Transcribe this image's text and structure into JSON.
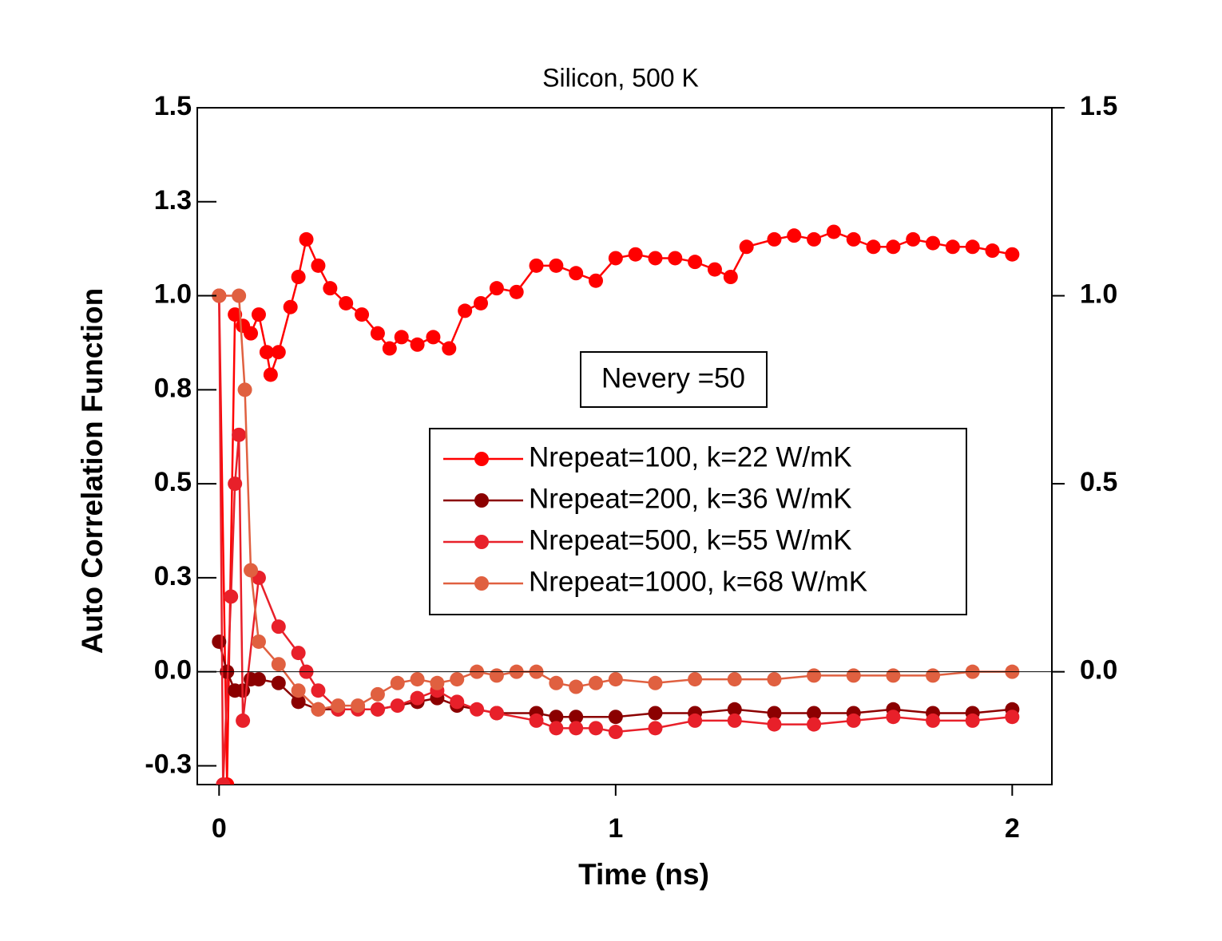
{
  "chart_data": {
    "type": "line",
    "title": "Silicon, 500 K",
    "xlabel": "Time (ns)",
    "ylabel": "Auto Correlation Function",
    "annotation": "Nevery =50",
    "xlim": [
      -0.055,
      2.1
    ],
    "xticks": [
      0,
      1,
      2
    ],
    "ylim": [
      -0.3,
      1.5
    ],
    "yticks": [
      1.5,
      {
        "value": 1.25,
        "label": "1.3"
      },
      {
        "value": 1,
        "label": "1.0"
      },
      {
        "value": 0.75,
        "label": "0.8"
      },
      0.5,
      {
        "value": 0.25,
        "label": "0.3"
      },
      {
        "value": 0,
        "label": "0.0"
      },
      {
        "value": -0.25,
        "label": "-0.3"
      }
    ],
    "y2lim": [
      -0.3,
      1.5
    ],
    "y2ticks": [
      1.5,
      {
        "value": 1,
        "label": "1.0"
      },
      0.5,
      {
        "value": 0,
        "label": "0.0"
      }
    ],
    "series": [
      {
        "name": "Nrepeat=100, k=22 W/mK",
        "color": "#ff0000",
        "x": [
          0,
          0.02,
          0.04,
          0.06,
          0.08,
          0.1,
          0.12,
          0.13,
          0.15,
          0.18,
          0.2,
          0.22,
          0.25,
          0.28,
          0.32,
          0.36,
          0.4,
          0.43,
          0.46,
          0.5,
          0.54,
          0.58,
          0.62,
          0.66,
          0.7,
          0.75,
          0.8,
          0.85,
          0.9,
          0.95,
          1.0,
          1.05,
          1.1,
          1.15,
          1.2,
          1.25,
          1.29,
          1.33,
          1.4,
          1.45,
          1.5,
          1.55,
          1.6,
          1.65,
          1.7,
          1.75,
          1.8,
          1.85,
          1.9,
          1.95,
          2.0
        ],
        "values": [
          1.0,
          -0.3,
          0.95,
          0.92,
          0.9,
          0.95,
          0.85,
          0.79,
          0.85,
          0.97,
          1.05,
          1.15,
          1.08,
          1.02,
          0.98,
          0.95,
          0.9,
          0.86,
          0.89,
          0.87,
          0.89,
          0.86,
          0.96,
          0.98,
          1.02,
          1.01,
          1.08,
          1.08,
          1.06,
          1.04,
          1.1,
          1.11,
          1.1,
          1.1,
          1.09,
          1.07,
          1.05,
          1.13,
          1.15,
          1.16,
          1.15,
          1.17,
          1.15,
          1.13,
          1.13,
          1.15,
          1.14,
          1.13,
          1.13,
          1.12,
          1.11
        ]
      },
      {
        "name": "Nrepeat=200, k=36 W/mK",
        "color": "#8b0000",
        "x": [
          0,
          0.02,
          0.04,
          0.06,
          0.08,
          0.1,
          0.15,
          0.2,
          0.25,
          0.3,
          0.4,
          0.5,
          0.55,
          0.6,
          0.7,
          0.8,
          0.85,
          0.9,
          1.0,
          1.1,
          1.2,
          1.3,
          1.4,
          1.5,
          1.6,
          1.7,
          1.8,
          1.9,
          2.0
        ],
        "values": [
          0.08,
          0.0,
          -0.05,
          -0.05,
          -0.02,
          -0.02,
          -0.03,
          -0.08,
          -0.1,
          -0.1,
          -0.1,
          -0.08,
          -0.07,
          -0.09,
          -0.11,
          -0.11,
          -0.12,
          -0.12,
          -0.12,
          -0.11,
          -0.11,
          -0.1,
          -0.11,
          -0.11,
          -0.11,
          -0.1,
          -0.11,
          -0.11,
          -0.1
        ]
      },
      {
        "name": "Nrepeat=500, k=55 W/mK",
        "color": "#e8202a",
        "x": [
          0,
          0.01,
          0.03,
          0.04,
          0.05,
          0.06,
          0.1,
          0.15,
          0.2,
          0.22,
          0.25,
          0.3,
          0.35,
          0.4,
          0.45,
          0.5,
          0.55,
          0.6,
          0.65,
          0.7,
          0.8,
          0.85,
          0.9,
          0.95,
          1.0,
          1.1,
          1.2,
          1.3,
          1.4,
          1.5,
          1.6,
          1.7,
          1.8,
          1.9,
          2.0
        ],
        "values": [
          1.0,
          -0.3,
          0.2,
          0.5,
          0.63,
          -0.13,
          0.25,
          0.12,
          0.05,
          0.0,
          -0.05,
          -0.1,
          -0.1,
          -0.1,
          -0.09,
          -0.07,
          -0.05,
          -0.08,
          -0.1,
          -0.11,
          -0.13,
          -0.15,
          -0.15,
          -0.15,
          -0.16,
          -0.15,
          -0.13,
          -0.13,
          -0.14,
          -0.14,
          -0.13,
          -0.12,
          -0.13,
          -0.13,
          -0.12
        ]
      },
      {
        "name": "Nrepeat=1000, k=68 W/mK",
        "color": "#e06040",
        "x": [
          0,
          0.05,
          0.065,
          0.08,
          0.1,
          0.15,
          0.2,
          0.25,
          0.3,
          0.35,
          0.4,
          0.45,
          0.5,
          0.55,
          0.6,
          0.65,
          0.7,
          0.75,
          0.8,
          0.85,
          0.9,
          0.95,
          1.0,
          1.1,
          1.2,
          1.3,
          1.4,
          1.5,
          1.6,
          1.7,
          1.8,
          1.9,
          2.0
        ],
        "values": [
          1.0,
          1.0,
          0.75,
          0.27,
          0.08,
          0.02,
          -0.05,
          -0.1,
          -0.09,
          -0.09,
          -0.06,
          -0.03,
          -0.02,
          -0.03,
          -0.02,
          0.0,
          -0.01,
          0.0,
          0.0,
          -0.03,
          -0.04,
          -0.03,
          -0.02,
          -0.03,
          -0.02,
          -0.02,
          -0.02,
          -0.01,
          -0.01,
          -0.01,
          -0.01,
          0.0,
          0.0
        ]
      }
    ]
  }
}
